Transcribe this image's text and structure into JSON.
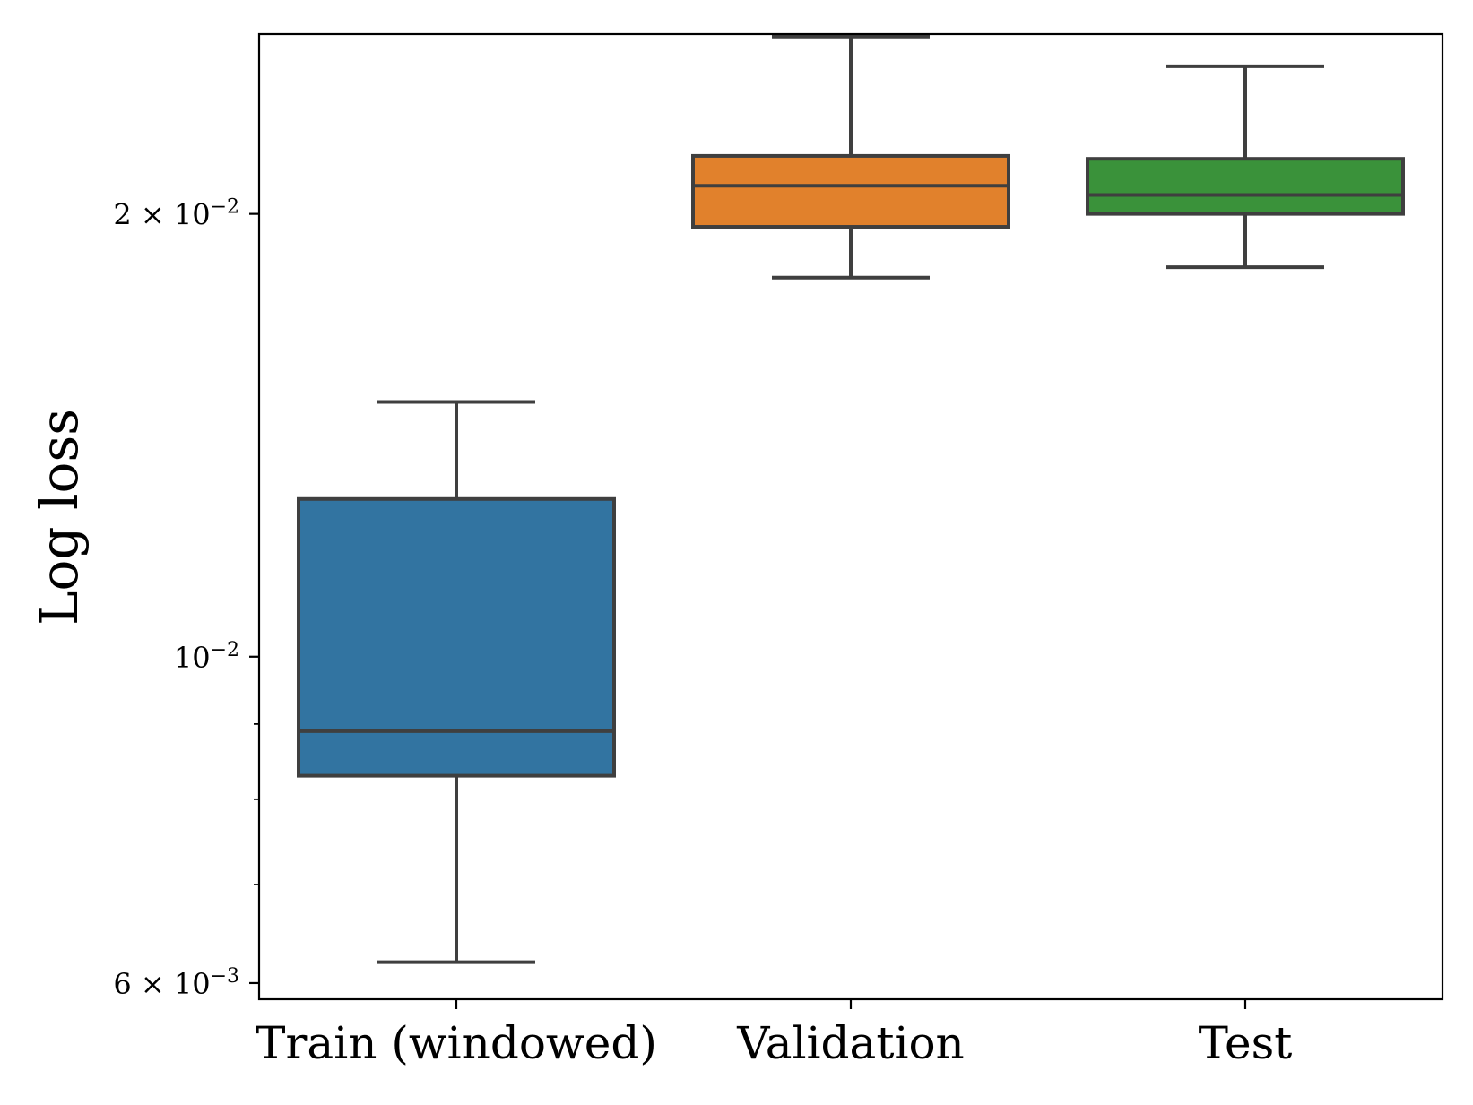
{
  "chart_data": {
    "type": "box",
    "title": "",
    "xlabel": "",
    "ylabel": "Log loss",
    "yscale": "log",
    "ylim": [
      0.00585,
      0.0265
    ],
    "categories": [
      "Train (windowed)",
      "Validation",
      "Test"
    ],
    "boxes": [
      {
        "name": "Train (windowed)",
        "color": "#3274a1",
        "whisker_low": 0.0062,
        "q1": 0.0083,
        "median": 0.0089,
        "q3": 0.0128,
        "whisker_high": 0.0149
      },
      {
        "name": "Validation",
        "color": "#e1812c",
        "whisker_low": 0.0181,
        "q1": 0.0196,
        "median": 0.0209,
        "q3": 0.0219,
        "whisker_high": 0.0264
      },
      {
        "name": "Test",
        "color": "#3a923a",
        "whisker_low": 0.0184,
        "q1": 0.02,
        "median": 0.0206,
        "q3": 0.0218,
        "whisker_high": 0.0252
      }
    ],
    "yticks": [
      {
        "value": 0.006,
        "mantissa": "6",
        "exponent": "−3",
        "times": "×",
        "base": "10"
      },
      {
        "value": 0.01,
        "mantissa": "",
        "exponent": "−2",
        "times": "",
        "base": "10"
      },
      {
        "value": 0.02,
        "mantissa": "2",
        "exponent": "−2",
        "times": "×",
        "base": "10"
      }
    ],
    "minor_yticks": [
      0.007,
      0.008,
      0.009
    ],
    "grid": false,
    "legend": "none"
  }
}
